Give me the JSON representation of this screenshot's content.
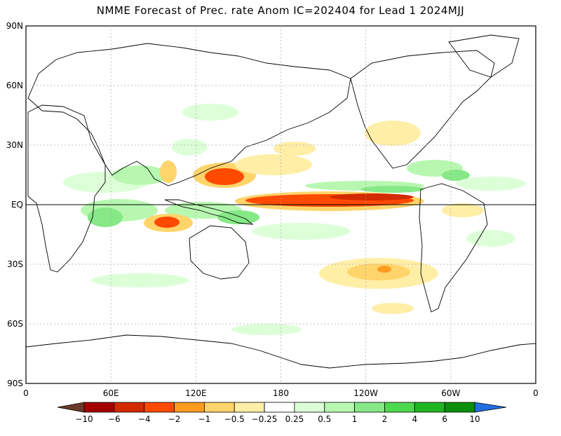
{
  "title": "NMME Forecast of Prec. rate Anom IC=202404 for Lead 1 2024MJJ",
  "lat_labels": [
    "90N",
    "60N",
    "30N",
    "EQ",
    "30S",
    "60S",
    "90S"
  ],
  "lon_labels": [
    "0",
    "60E",
    "120E",
    "180",
    "120W",
    "60W",
    "0"
  ],
  "colorbar": {
    "labels": [
      "−10",
      "−6",
      "−4",
      "−2",
      "−1",
      "−0.5",
      "−0.25",
      "0.25",
      "0.5",
      "1",
      "2",
      "4",
      "6",
      "10"
    ],
    "colors": [
      "#6b3a2a",
      "#a50000",
      "#d42a00",
      "#ff4a00",
      "#ff9c20",
      "#ffd46a",
      "#ffeea6",
      "#ffffff",
      "#dcffd8",
      "#b8f7b0",
      "#86e886",
      "#4ed84e",
      "#22b522",
      "#0a8f0a",
      "#1f6fe0"
    ]
  },
  "anomaly_colors": {
    "wet_light": "#dcffd8",
    "wet_mid": "#b8f7b0",
    "wet_strong": "#86e886",
    "dry_light": "#ffeea6",
    "dry_mid": "#ffd46a",
    "dry_strong": "#ff9c20",
    "dry_very": "#ff4a00",
    "dry_extreme": "#d42a00"
  }
}
